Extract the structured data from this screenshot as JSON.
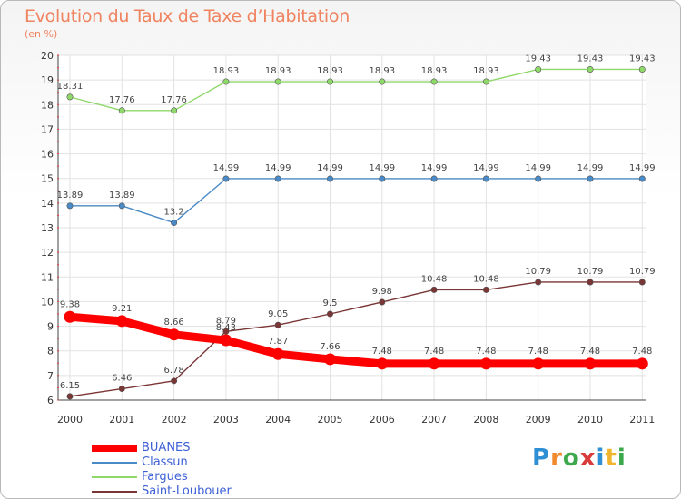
{
  "header": {
    "title": "Evolution du Taux de Taxe d’Habitation",
    "subtitle": "(en %)"
  },
  "chart_data": {
    "type": "line",
    "title": "Evolution du Taux de Taxe d’Habitation",
    "ylabel": "(en %)",
    "xlabel": "",
    "categories": [
      "2000",
      "2001",
      "2002",
      "2003",
      "2004",
      "2005",
      "2006",
      "2007",
      "2008",
      "2009",
      "2010",
      "2011"
    ],
    "ylim": [
      6,
      20
    ],
    "yticks": [
      "6",
      "7",
      "8",
      "9",
      "10",
      "11",
      "12",
      "13",
      "14",
      "15",
      "16",
      "17",
      "18",
      "19",
      "20"
    ],
    "grid": true,
    "legend_position": "bottom-left",
    "series": [
      {
        "name": "BUANES",
        "color": "#ff0000",
        "highlight": true,
        "values": [
          9.38,
          9.21,
          8.66,
          8.43,
          7.87,
          7.66,
          7.48,
          7.48,
          7.48,
          7.48,
          7.48,
          7.48
        ],
        "labels": [
          "9.38",
          "9.21",
          "8.66",
          "8.43",
          "7.87",
          "7.66",
          "7.48",
          "7.48",
          "7.48",
          "7.48",
          "7.48",
          "7.48"
        ]
      },
      {
        "name": "Classun",
        "color": "#4a8ac6",
        "highlight": false,
        "values": [
          13.89,
          13.89,
          13.2,
          14.99,
          14.99,
          14.99,
          14.99,
          14.99,
          14.99,
          14.99,
          14.99,
          14.99
        ],
        "labels": [
          "13.89",
          "13.89",
          "13.2",
          "14.99",
          "14.99",
          "14.99",
          "14.99",
          "14.99",
          "14.99",
          "14.99",
          "14.99",
          "14.99"
        ]
      },
      {
        "name": "Fargues",
        "color": "#8fd86a",
        "highlight": false,
        "values": [
          18.31,
          17.76,
          17.76,
          18.93,
          18.93,
          18.93,
          18.93,
          18.93,
          18.93,
          19.43,
          19.43,
          19.43
        ],
        "labels": [
          "18.31",
          "17.76",
          "17.76",
          "18.93",
          "18.93",
          "18.93",
          "18.93",
          "18.93",
          "18.93",
          "19.43",
          "19.43",
          "19.43"
        ]
      },
      {
        "name": "Saint-Loubouer",
        "color": "#7a3535",
        "highlight": false,
        "values": [
          6.15,
          6.46,
          6.78,
          8.79,
          9.05,
          9.5,
          9.98,
          10.48,
          10.48,
          10.79,
          10.79,
          10.79
        ],
        "labels": [
          "6.15",
          "6.46",
          "6.78",
          "8.79",
          "9.05",
          "9.5",
          "9.98",
          "10.48",
          "10.48",
          "10.79",
          "10.79",
          "10.79"
        ]
      }
    ]
  },
  "logo": {
    "text": "Proxiti"
  }
}
